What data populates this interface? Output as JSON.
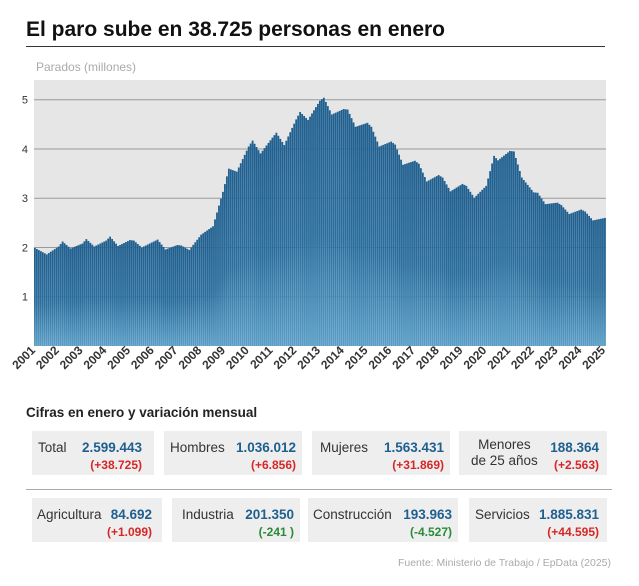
{
  "title": "El paro sube en 38.725 personas en enero",
  "section_title": "Cifras en enero y variación mensual",
  "source": "Fuente: Ministerio de Trabajo / EpData (2025)",
  "colors": {
    "bar": "#1f5f8f",
    "bar_light": "#5a9fc8",
    "positive_change": "#d62728",
    "negative_change": "#2a8a3a",
    "value": "#1f5f8f"
  },
  "chart_data": {
    "type": "bar",
    "title": "",
    "ylabel": "Parados (millones)",
    "ylim": [
      0,
      5.4
    ],
    "yticks": [
      1,
      2,
      3,
      4,
      5
    ],
    "xticks": [
      "2001",
      "2002",
      "2003",
      "2004",
      "2005",
      "2006",
      "2007",
      "2008",
      "2009",
      "2010",
      "2011",
      "2012",
      "2013",
      "2014",
      "2015",
      "2016",
      "2017",
      "2018",
      "2019",
      "2020",
      "2021",
      "2022",
      "2023",
      "2024",
      "2025"
    ],
    "grid": true,
    "frequency": "monthly",
    "anchors": [
      {
        "x": "2001-01",
        "y": 1.99
      },
      {
        "x": "2001-07",
        "y": 1.86
      },
      {
        "x": "2002-01",
        "y": 2.02
      },
      {
        "x": "2002-03",
        "y": 2.12
      },
      {
        "x": "2002-07",
        "y": 1.98
      },
      {
        "x": "2003-01",
        "y": 2.08
      },
      {
        "x": "2003-03",
        "y": 2.17
      },
      {
        "x": "2003-07",
        "y": 2.02
      },
      {
        "x": "2004-01",
        "y": 2.14
      },
      {
        "x": "2004-03",
        "y": 2.22
      },
      {
        "x": "2004-07",
        "y": 2.03
      },
      {
        "x": "2005-01",
        "y": 2.15
      },
      {
        "x": "2005-03",
        "y": 2.14
      },
      {
        "x": "2005-07",
        "y": 2.0
      },
      {
        "x": "2006-01",
        "y": 2.12
      },
      {
        "x": "2006-03",
        "y": 2.16
      },
      {
        "x": "2006-07",
        "y": 1.96
      },
      {
        "x": "2007-01",
        "y": 2.05
      },
      {
        "x": "2007-03",
        "y": 2.04
      },
      {
        "x": "2007-07",
        "y": 1.95
      },
      {
        "x": "2008-01",
        "y": 2.26
      },
      {
        "x": "2008-07",
        "y": 2.43
      },
      {
        "x": "2008-12",
        "y": 3.13
      },
      {
        "x": "2009-03",
        "y": 3.6
      },
      {
        "x": "2009-07",
        "y": 3.54
      },
      {
        "x": "2010-01",
        "y": 4.05
      },
      {
        "x": "2010-03",
        "y": 4.17
      },
      {
        "x": "2010-07",
        "y": 3.91
      },
      {
        "x": "2011-01",
        "y": 4.23
      },
      {
        "x": "2011-03",
        "y": 4.33
      },
      {
        "x": "2011-07",
        "y": 4.08
      },
      {
        "x": "2012-01",
        "y": 4.6
      },
      {
        "x": "2012-03",
        "y": 4.75
      },
      {
        "x": "2012-07",
        "y": 4.59
      },
      {
        "x": "2013-01",
        "y": 4.98
      },
      {
        "x": "2013-03",
        "y": 5.04
      },
      {
        "x": "2013-07",
        "y": 4.7
      },
      {
        "x": "2014-01",
        "y": 4.81
      },
      {
        "x": "2014-03",
        "y": 4.8
      },
      {
        "x": "2014-07",
        "y": 4.45
      },
      {
        "x": "2015-01",
        "y": 4.53
      },
      {
        "x": "2015-03",
        "y": 4.45
      },
      {
        "x": "2015-07",
        "y": 4.05
      },
      {
        "x": "2016-01",
        "y": 4.15
      },
      {
        "x": "2016-03",
        "y": 4.09
      },
      {
        "x": "2016-07",
        "y": 3.68
      },
      {
        "x": "2017-01",
        "y": 3.76
      },
      {
        "x": "2017-03",
        "y": 3.7
      },
      {
        "x": "2017-07",
        "y": 3.34
      },
      {
        "x": "2018-01",
        "y": 3.47
      },
      {
        "x": "2018-03",
        "y": 3.42
      },
      {
        "x": "2018-07",
        "y": 3.14
      },
      {
        "x": "2019-01",
        "y": 3.29
      },
      {
        "x": "2019-03",
        "y": 3.25
      },
      {
        "x": "2019-07",
        "y": 3.01
      },
      {
        "x": "2020-01",
        "y": 3.25
      },
      {
        "x": "2020-03",
        "y": 3.55
      },
      {
        "x": "2020-05",
        "y": 3.86
      },
      {
        "x": "2020-07",
        "y": 3.77
      },
      {
        "x": "2021-01",
        "y": 3.96
      },
      {
        "x": "2021-03",
        "y": 3.95
      },
      {
        "x": "2021-07",
        "y": 3.42
      },
      {
        "x": "2022-01",
        "y": 3.12
      },
      {
        "x": "2022-03",
        "y": 3.11
      },
      {
        "x": "2022-07",
        "y": 2.88
      },
      {
        "x": "2023-01",
        "y": 2.91
      },
      {
        "x": "2023-03",
        "y": 2.86
      },
      {
        "x": "2023-07",
        "y": 2.68
      },
      {
        "x": "2024-01",
        "y": 2.77
      },
      {
        "x": "2024-03",
        "y": 2.73
      },
      {
        "x": "2024-07",
        "y": 2.55
      },
      {
        "x": "2025-01",
        "y": 2.6
      }
    ]
  },
  "stats_row1": [
    {
      "label": "Total",
      "value": "2.599.443",
      "change": "(+38.725)",
      "sign": "pos"
    },
    {
      "label": "Hombres",
      "value": "1.036.012",
      "change": "(+6.856)",
      "sign": "pos"
    },
    {
      "label": "Mujeres",
      "value": "1.563.431",
      "change": "(+31.869)",
      "sign": "pos"
    },
    {
      "label": "Menores",
      "label2": "de 25 años",
      "value": "188.364",
      "change": "(+2.563)",
      "sign": "pos"
    }
  ],
  "stats_row2": [
    {
      "label": "Agricultura",
      "value": "84.692",
      "change": "(+1.099)",
      "sign": "pos"
    },
    {
      "label": "Industria",
      "value": "201.350",
      "change": "(-241 )",
      "sign": "neg"
    },
    {
      "label": "Construcción",
      "value": "193.963",
      "change": "(-4.527)",
      "sign": "neg"
    },
    {
      "label": "Servicios",
      "value": "1.885.831",
      "change": "(+44.595)",
      "sign": "pos"
    }
  ]
}
